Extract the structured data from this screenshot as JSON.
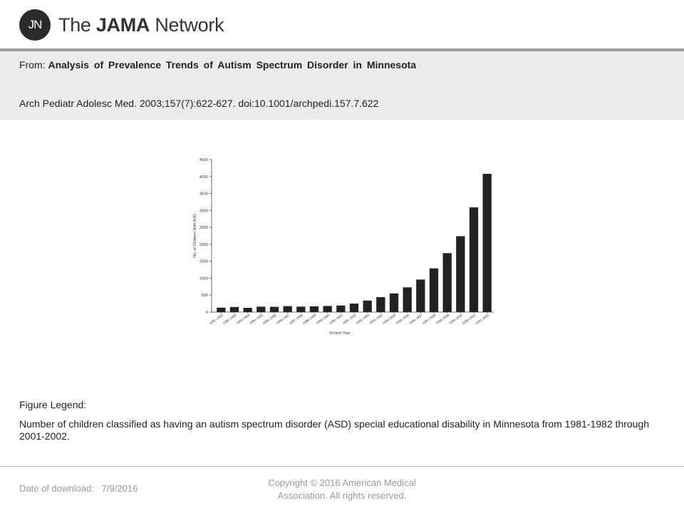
{
  "logo": {
    "initials": "JN",
    "brand_prefix": "The ",
    "brand_bold": "JAMA",
    "brand_suffix": " Network"
  },
  "header": {
    "from_label": "From:",
    "article_title": "Analysis of Prevalence Trends of Autism Spectrum Disorder in Minnesota",
    "citation": "Arch Pediatr Adolesc Med. 2003;157(7):622-627. doi:10.1001/archpedi.157.7.622"
  },
  "chart_data": {
    "type": "bar",
    "title": "",
    "xlabel": "School Year",
    "ylabel": "No. of Children With ASD",
    "ylim": [
      0,
      4500
    ],
    "yticks": [
      0,
      500,
      1000,
      1500,
      2000,
      2500,
      3000,
      3500,
      4000,
      4500
    ],
    "categories": [
      "1981-1982",
      "1982-1983",
      "1983-1984",
      "1984-1985",
      "1985-1986",
      "1986-1987",
      "1987-1988",
      "1988-1989",
      "1989-1990",
      "1990-1991",
      "1991-1992",
      "1992-1993",
      "1993-1994",
      "1994-1995",
      "1995-1996",
      "1996-1997",
      "1997-1998",
      "1998-1999",
      "1999-2000",
      "2000-2001",
      "2001-2002"
    ],
    "values": [
      130,
      150,
      125,
      160,
      155,
      175,
      160,
      170,
      180,
      195,
      250,
      340,
      440,
      550,
      730,
      960,
      1290,
      1740,
      2240,
      3090,
      4080
    ],
    "bar_color": "#222222",
    "grid": false
  },
  "legend": {
    "label": "Figure Legend:",
    "text": "Number of children classified as having an autism spectrum disorder (ASD) special educational disability in Minnesota from 1981-1982 through 2001-2002."
  },
  "footer": {
    "date_label": "Date of download:",
    "date_value": "7/9/2016",
    "copyright": "Copyright © 2016 American Medical Association. All rights reserved."
  }
}
